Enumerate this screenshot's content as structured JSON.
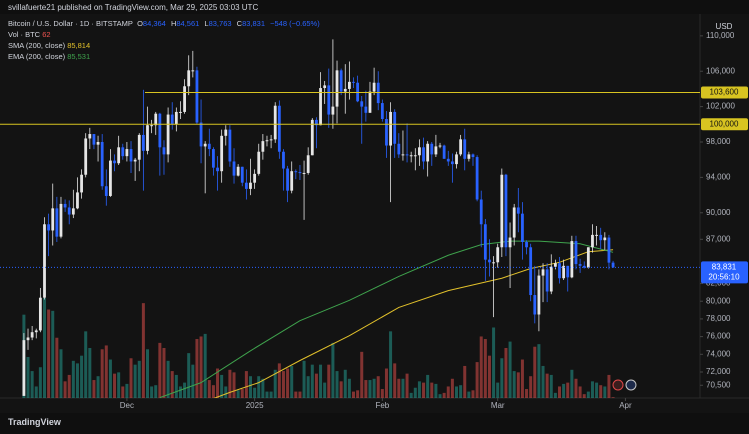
{
  "header": {
    "publisher": "svillafuerte21 published on TradingView.com, Mar 29, 2025 03:03 UTC",
    "symbol": "Bitcoin / U.S. Dollar · 1D · BITSTAMP",
    "ohlc": [
      {
        "label": "O",
        "value": "84,364"
      },
      {
        "label": "H",
        "value": "84,561"
      },
      {
        "label": "L",
        "value": "83,763"
      },
      {
        "label": "C",
        "value": "83,831"
      }
    ],
    "change": "−548 (−0.65%)",
    "volume_label": "Vol · BTC",
    "currency": "USD",
    "footer": "TradingView"
  },
  "chart_data": {
    "type": "candlestick",
    "colors": {
      "up": "#e6e6e6",
      "down": "#2962ff",
      "volume_up": "rgba(38,166,154,0.5)",
      "volume_down": "rgba(239,83,80,0.5)"
    },
    "xlim": [
      -5.8,
      164.1
    ],
    "xticks": [
      {
        "value": 25,
        "label": "Dec"
      },
      {
        "value": 56,
        "label": "2025"
      },
      {
        "value": 87,
        "label": "Feb"
      },
      {
        "value": 115,
        "label": "Mar"
      },
      {
        "value": 146,
        "label": "Apr"
      }
    ],
    "ylim": [
      69061,
      112244
    ],
    "yticks": [
      {
        "value": 110000,
        "label": "110,000"
      },
      {
        "value": 106000,
        "label": "106,000"
      },
      {
        "value": 102000,
        "label": "102,000"
      },
      {
        "value": 98000,
        "label": "98,000"
      },
      {
        "value": 94000,
        "label": "94,000"
      },
      {
        "value": 90000,
        "label": "90,000"
      },
      {
        "value": 87000,
        "label": "87,000"
      },
      {
        "value": 82000,
        "label": "82,000"
      },
      {
        "value": 80000,
        "label": "80,000"
      },
      {
        "value": 78000,
        "label": "78,000"
      },
      {
        "value": 76000,
        "label": "76,000"
      },
      {
        "value": 74000,
        "label": "74,000"
      },
      {
        "value": 72000,
        "label": "72,000"
      },
      {
        "value": 70500,
        "label": "70,500"
      }
    ],
    "grid": false,
    "open": [
      69300,
      75600,
      75900,
      76500,
      76700,
      80400,
      88700,
      88000,
      90500,
      87300,
      91000,
      90600,
      89800,
      90500,
      92300,
      94300,
      98400,
      98900,
      97700,
      98000,
      93000,
      91900,
      95900,
      95600,
      97400,
      96400,
      97200,
      95800,
      96000,
      98800,
      97000,
      99900,
      99900,
      101200,
      97400,
      96600,
      101100,
      100000,
      101400,
      101400,
      104300,
      106100,
      106100,
      100200,
      97500,
      97800,
      97200,
      95100,
      94700,
      98700,
      99400,
      95800,
      94200,
      95200,
      93400,
      92700,
      93400,
      94400,
      96900,
      98100,
      98200,
      98300,
      102100,
      96900,
      95000,
      92500,
      94700,
      94600,
      94500,
      94500,
      96500,
      100500,
      99900,
      104100,
      104400,
      101100,
      102000,
      106100,
      103700,
      104000,
      104800,
      104700,
      102600,
      102000,
      101300,
      103700,
      104700,
      102400,
      100600,
      97600,
      101400,
      97800,
      96600,
      96600,
      96500,
      96500,
      96500,
      97400,
      95800,
      97800,
      96600,
      97500,
      97600,
      96100,
      95800,
      95500,
      96600,
      98300,
      96100,
      96600,
      96300,
      91500,
      88700,
      84700,
      84400,
      84400,
      86100,
      94300,
      86100,
      87200,
      90600,
      89900,
      86700,
      86100,
      80700,
      78500,
      82900,
      83600,
      81100,
      83900,
      84300,
      82600,
      84000,
      82700,
      86800,
      84200,
      84000,
      83800,
      86100,
      87500,
      87500,
      86900,
      87200,
      84364
    ],
    "high": [
      76400,
      76900,
      77200,
      76900,
      81500,
      89500,
      89900,
      93300,
      91800,
      91800,
      91500,
      91400,
      92600,
      94000,
      94900,
      99000,
      99600,
      98900,
      98700,
      98900,
      94900,
      97200,
      96600,
      98700,
      97800,
      98000,
      98100,
      96200,
      99000,
      103900,
      102000,
      100500,
      101400,
      101300,
      98200,
      101900,
      102500,
      101900,
      102600,
      105100,
      107800,
      108300,
      106500,
      102800,
      98100,
      99500,
      97400,
      96400,
      99400,
      99900,
      99900,
      97300,
      95500,
      95200,
      94900,
      96100,
      94900,
      97800,
      98900,
      98700,
      98800,
      102500,
      102700,
      97200,
      95300,
      95800,
      94900,
      95400,
      95900,
      97400,
      100700,
      100800,
      105900,
      104900,
      106300,
      109600,
      107200,
      106300,
      106800,
      107100,
      105300,
      105500,
      103200,
      103800,
      104800,
      106400,
      106000,
      102800,
      101500,
      102500,
      101700,
      99000,
      99300,
      100100,
      96900,
      97300,
      98300,
      98500,
      98100,
      98000,
      98800,
      97900,
      97700,
      97000,
      96700,
      96900,
      98800,
      99500,
      96900,
      96700,
      96500,
      92500,
      89300,
      87000,
      85100,
      86500,
      95000,
      94400,
      88900,
      91000,
      92800,
      91200,
      86900,
      86500,
      84000,
      83600,
      84300,
      84300,
      85300,
      84700,
      85000,
      84700,
      84000,
      87400,
      87400,
      84800,
      84500,
      86100,
      88700,
      88500,
      88300,
      87800,
      87500,
      84561
    ],
    "low": [
      69300,
      74500,
      75600,
      75800,
      76500,
      80200,
      85100,
      86300,
      86700,
      87100,
      90100,
      88700,
      89400,
      90400,
      91600,
      94000,
      97200,
      97200,
      95800,
      92600,
      90800,
      91800,
      94700,
      95400,
      96000,
      95800,
      94500,
      93600,
      94700,
      92500,
      96600,
      99000,
      98800,
      94200,
      94300,
      95700,
      99400,
      99200,
      100600,
      101200,
      103300,
      105300,
      100000,
      95600,
      92200,
      96400,
      94200,
      92500,
      93400,
      97600,
      95200,
      93300,
      94100,
      93000,
      91500,
      92000,
      92700,
      94200,
      96000,
      97500,
      97300,
      97900,
      96100,
      92500,
      91200,
      92200,
      93800,
      93700,
      89200,
      94300,
      96500,
      97300,
      99900,
      102300,
      99600,
      99500,
      100100,
      103300,
      101200,
      102800,
      104100,
      102500,
      97800,
      100300,
      101300,
      103300,
      101600,
      100300,
      96200,
      91200,
      96200,
      96200,
      95900,
      95700,
      95700,
      94800,
      95300,
      94900,
      94100,
      95300,
      96300,
      97300,
      96100,
      95300,
      93400,
      95000,
      96400,
      94800,
      95800,
      95300,
      91300,
      86100,
      82300,
      82800,
      78200,
      83800,
      85000,
      85100,
      81500,
      86300,
      87800,
      84700,
      85300,
      80000,
      77500,
      76600,
      79900,
      79900,
      80800,
      83600,
      82000,
      82400,
      81100,
      82600,
      83600,
      83200,
      83700,
      83700,
      85500,
      86300,
      85900,
      85800,
      83600,
      83763
    ],
    "close": [
      75600,
      75900,
      76500,
      76700,
      80400,
      88700,
      88000,
      90500,
      87300,
      91000,
      90600,
      89800,
      90500,
      92300,
      94300,
      98400,
      98900,
      97700,
      98000,
      93000,
      91900,
      95900,
      95600,
      97400,
      96400,
      97200,
      95800,
      96000,
      98800,
      97000,
      99900,
      99900,
      101200,
      97400,
      96600,
      101100,
      100000,
      101400,
      101400,
      104300,
      106100,
      106100,
      100200,
      97500,
      97800,
      97200,
      95100,
      94700,
      98700,
      99400,
      95800,
      94200,
      95200,
      93400,
      92700,
      93400,
      94400,
      96900,
      98100,
      98200,
      98300,
      102100,
      96900,
      95000,
      92500,
      94700,
      94600,
      94500,
      94500,
      96500,
      100500,
      99900,
      104100,
      104400,
      101100,
      102000,
      106100,
      103700,
      104000,
      104800,
      104700,
      102600,
      102000,
      101300,
      103700,
      104700,
      102400,
      100600,
      97600,
      101400,
      97800,
      96600,
      96600,
      96500,
      96500,
      96500,
      97400,
      95800,
      97800,
      96600,
      97500,
      97600,
      96100,
      95800,
      95500,
      96600,
      98300,
      96100,
      96600,
      96300,
      91500,
      88700,
      84700,
      84400,
      84400,
      86100,
      94300,
      86100,
      87200,
      90600,
      89900,
      86700,
      86100,
      80700,
      78500,
      82900,
      83600,
      81100,
      83900,
      84300,
      82600,
      84000,
      82700,
      86800,
      84200,
      84000,
      83800,
      86100,
      87500,
      87500,
      86900,
      87200,
      84364,
      83831
    ],
    "volume": [
      6500,
      3200,
      2100,
      900,
      2400,
      7800,
      6900,
      6800,
      4700,
      3800,
      1300,
      1800,
      2900,
      2700,
      3300,
      5200,
      3900,
      1400,
      1700,
      3800,
      4100,
      3000,
      1900,
      2000,
      900,
      1100,
      3100,
      2600,
      2900,
      7400,
      3800,
      900,
      1000,
      4300,
      3900,
      2900,
      2100,
      1800,
      900,
      1200,
      3500,
      2600,
      4600,
      4800,
      5000,
      1400,
      1000,
      2300,
      1800,
      900,
      2200,
      2000,
      600,
      700,
      2100,
      1700,
      800,
      1700,
      1500,
      500,
      500,
      2200,
      2700,
      2100,
      2300,
      2500,
      500,
      500,
      2900,
      1700,
      2600,
      1900,
      2600,
      1200,
      2600,
      4300,
      2100,
      1300,
      2200,
      1500,
      500,
      600,
      3600,
      1400,
      1400,
      1500,
      1700,
      700,
      2300,
      5200,
      2700,
      1500,
      1500,
      1900,
      400,
      800,
      1300,
      1200,
      1800,
      1200,
      1100,
      300,
      400,
      900,
      1500,
      900,
      1000,
      2500,
      500,
      600,
      2800,
      4800,
      4600,
      3300,
      5500,
      1200,
      3100,
      3900,
      4400,
      2100,
      2000,
      3000,
      700,
      1700,
      4000,
      4200,
      2500,
      1900,
      1800,
      400,
      900,
      1100,
      1200,
      2200,
      1500,
      900,
      300,
      500,
      1300,
      1200,
      1000,
      900,
      1800,
      62
    ],
    "series": [
      {
        "name": "SMA (200, close)",
        "value_label": "85,814",
        "color": "#e2c12b",
        "x": [
          46,
          50,
          57,
          67,
          79,
          91,
          103,
          116,
          123,
          130,
          137,
          143
        ],
        "values": [
          69000,
          69700,
          70800,
          73300,
          76100,
          79300,
          81200,
          82600,
          83700,
          84400,
          85600,
          85814
        ]
      },
      {
        "name": "EMA (200, close)",
        "value_label": "85,531",
        "color": "#3fa34d",
        "x": [
          33,
          43,
          55,
          67,
          79,
          91,
          103,
          111,
          118,
          125,
          135,
          143
        ],
        "values": [
          69100,
          70800,
          74400,
          77800,
          80100,
          82800,
          85200,
          86400,
          86800,
          86800,
          86500,
          85531
        ]
      }
    ],
    "levels": [
      {
        "value": 103600,
        "label": "103,600"
      },
      {
        "value": 100000,
        "label": "100,000"
      }
    ],
    "level_color": "#d8c421",
    "last_price": {
      "value": 83831,
      "label": "83,831",
      "countdown": "20:56:10"
    }
  }
}
